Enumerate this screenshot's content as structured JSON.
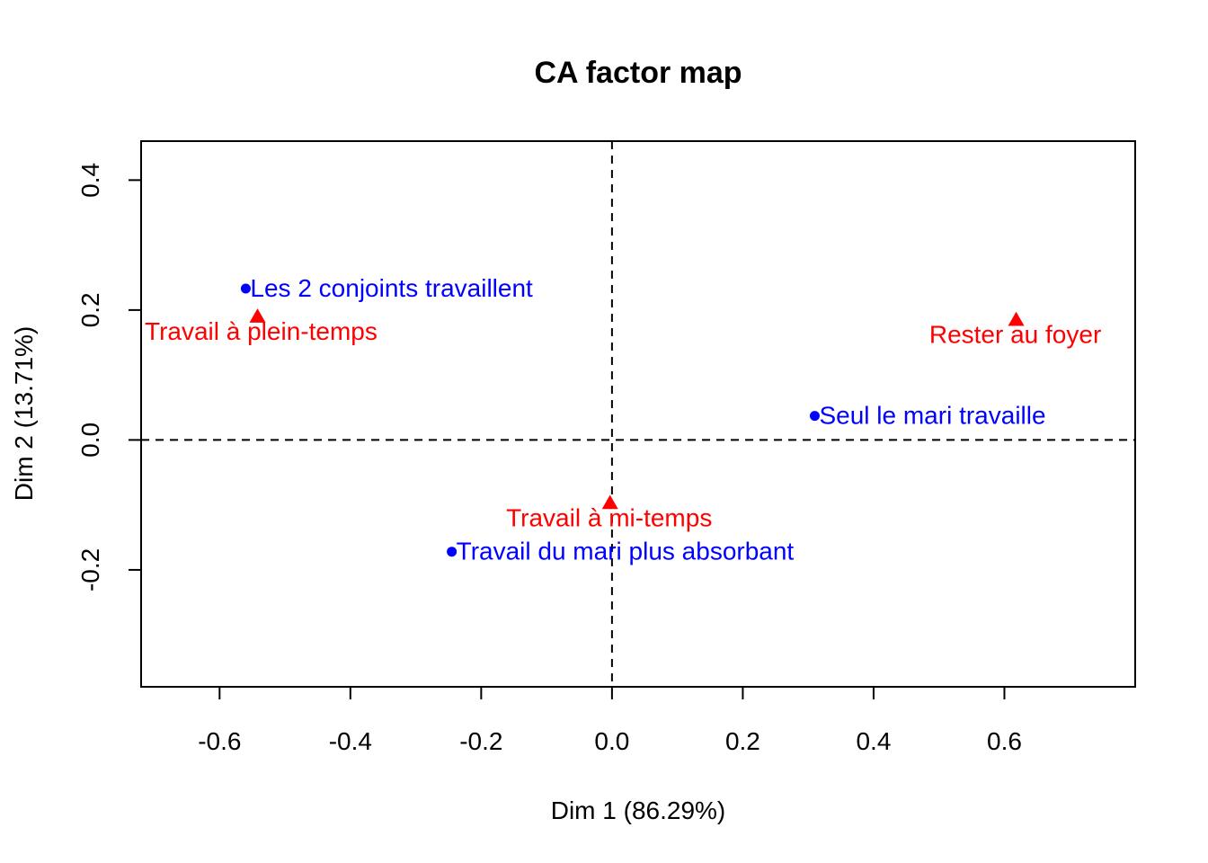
{
  "chart_data": {
    "type": "scatter",
    "title": "CA factor map",
    "xlabel": "Dim 1 (86.29%)",
    "ylabel": "Dim 2 (13.71%)",
    "xlim": [
      -0.72,
      0.8
    ],
    "ylim": [
      -0.38,
      0.46
    ],
    "xticks": [
      -0.6,
      -0.4,
      -0.2,
      0.0,
      0.2,
      0.4,
      0.6
    ],
    "xtick_labels": [
      "-0.6",
      "-0.4",
      "-0.2",
      "0.0",
      "0.2",
      "0.4",
      "0.6"
    ],
    "yticks": [
      -0.2,
      0.0,
      0.2,
      0.4
    ],
    "ytick_labels": [
      "-0.2",
      "0.0",
      "0.2",
      "0.4"
    ],
    "reference_lines": {
      "x": 0,
      "y": 0,
      "style": "dashed"
    },
    "grid": false,
    "series": [
      {
        "marker": "circle",
        "color": "#0000ff",
        "points": [
          {
            "label": "Les 2 conjoints travaillent",
            "x": -0.56,
            "y": 0.233
          },
          {
            "label": "Seul le mari travaille",
            "x": 0.31,
            "y": 0.037
          },
          {
            "label": "Travail du mari plus absorbant",
            "x": -0.245,
            "y": -0.172
          }
        ]
      },
      {
        "marker": "triangle",
        "color": "#ff0000",
        "points": [
          {
            "label": "Travail à plein-temps",
            "x": -0.542,
            "y": 0.19
          },
          {
            "label": "Rester au foyer",
            "x": 0.618,
            "y": 0.185
          },
          {
            "label": "Travail à mi-temps",
            "x": -0.003,
            "y": -0.097
          }
        ]
      }
    ]
  }
}
